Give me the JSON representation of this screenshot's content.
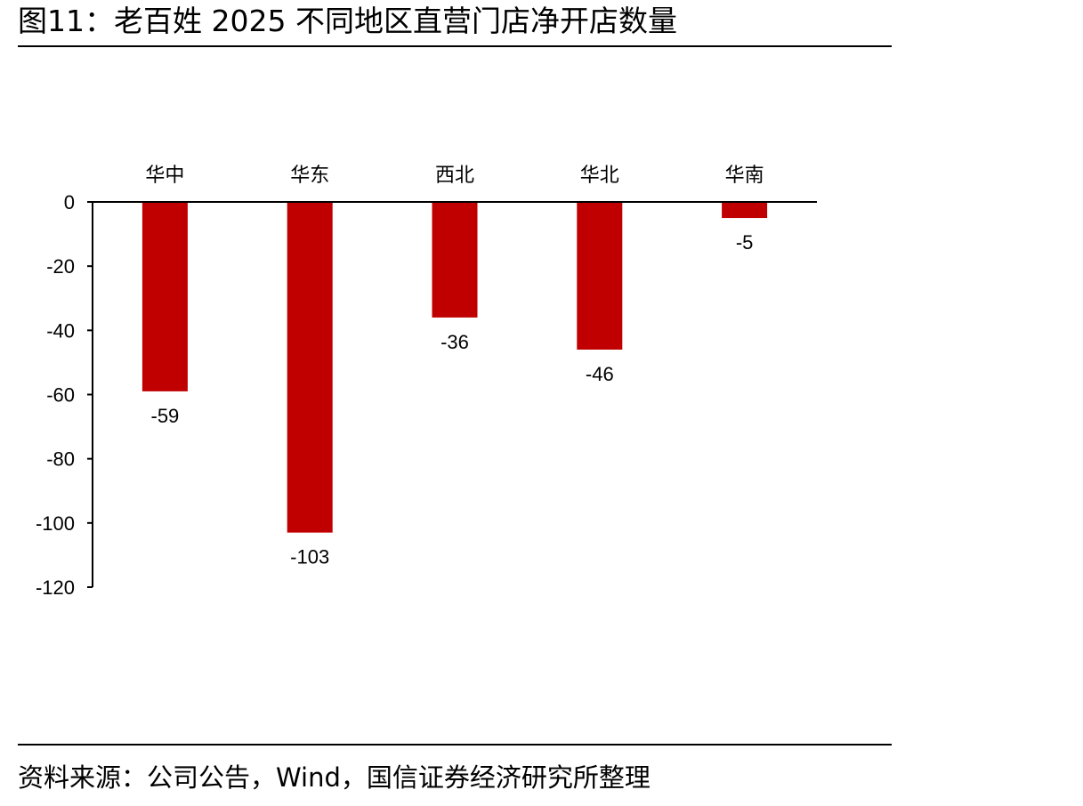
{
  "figure": {
    "title": "图11：老百姓 2025 不同地区直营门店净开店数量",
    "source": "资料来源：公司公告，Wind，国信证券经济研究所整理"
  },
  "colors": {
    "bar": "#c00000",
    "axis": "#000000"
  },
  "chart_data": {
    "type": "bar",
    "categories": [
      "华中",
      "华东",
      "西北",
      "华北",
      "华南"
    ],
    "values": [
      -59,
      -103,
      -36,
      -46,
      -5
    ],
    "data_labels": [
      "-59",
      "-103",
      "-36",
      "-46",
      "-5"
    ],
    "title": "",
    "xlabel": "",
    "ylabel": "",
    "ylim": [
      -120,
      0
    ],
    "yticks": [
      0,
      -20,
      -40,
      -60,
      -80,
      -100,
      -120
    ],
    "ytick_labels": [
      "0",
      "-20",
      "-40",
      "-60",
      "-80",
      "-100",
      "-120"
    ],
    "category_axis_position": "top",
    "grid": false,
    "legend": "none"
  }
}
